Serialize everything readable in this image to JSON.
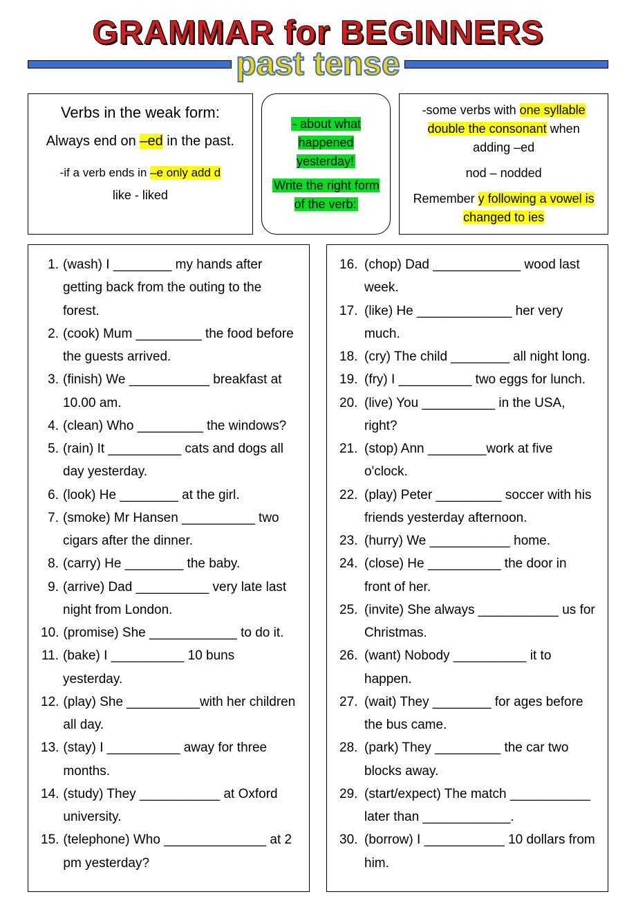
{
  "colors": {
    "title_red": "#d41e1e",
    "bar_blue": "#3b6fd1",
    "subtitle_yellow": "#f5d500",
    "highlight_yellow": "#ffff00",
    "highlight_green": "#00e020",
    "border": "#000000",
    "background": "#ffffff",
    "text": "#000000"
  },
  "title": "GRAMMAR for BEGINNERS",
  "subtitle": "past tense",
  "info_left": {
    "heading": "Verbs in the weak form:",
    "line1a": "Always end on ",
    "line1_hl": "–ed",
    "line1b": " in the past.",
    "note1a": "-if a verb ends in ",
    "note1_hl": "–e only add d",
    "example": "like - liked"
  },
  "info_mid": {
    "p1": "- about what happened yesterday!",
    "p2": "Write the right form of the verb:"
  },
  "info_right": {
    "l1a": "-some verbs with ",
    "l1_hl1": "one syllable",
    "l1b": " ",
    "l1_hl2": "double the consonant",
    "l1c": " when adding –ed",
    "ex": "nod – nodded",
    "l2a": "Remember ",
    "l2_hl": "y following a vowel is changed to ies"
  },
  "left_items": [
    {
      "n": "1.",
      "t": "(wash) I ________ my hands after getting back from the outing to the forest."
    },
    {
      "n": "2.",
      "t": "(cook) Mum _________ the food before the guests arrived."
    },
    {
      "n": "3.",
      "t": "(finish) We ___________ breakfast at 10.00 am."
    },
    {
      "n": "4.",
      "t": "(clean) Who _________ the windows?"
    },
    {
      "n": "5.",
      "t": "(rain) It __________ cats and dogs all day yesterday."
    },
    {
      "n": "6.",
      "t": "(look) He ________ at the girl."
    },
    {
      "n": "7.",
      "t": "(smoke) Mr Hansen __________ two cigars after the dinner."
    },
    {
      "n": "8.",
      "t": "(carry) He ________ the baby."
    },
    {
      "n": "9.",
      "t": "(arrive) Dad __________ very late last night from London."
    },
    {
      "n": "10.",
      "t": "(promise) She ____________ to do it."
    },
    {
      "n": "11.",
      "t": "(bake) I __________ 10 buns yesterday."
    },
    {
      "n": "12.",
      "t": "(play) She __________with her children all day."
    },
    {
      "n": "13.",
      "t": "(stay) I __________ away for three months."
    },
    {
      "n": "14.",
      "t": "(study) They ___________ at Oxford university."
    },
    {
      "n": "15.",
      "t": "(telephone) Who ______________ at 2 pm yesterday?"
    }
  ],
  "right_items": [
    {
      "n": "16.",
      "t": "(chop) Dad ____________ wood last week."
    },
    {
      "n": "17.",
      "t": "(like) He _____________ her very much."
    },
    {
      "n": "18.",
      "t": "(cry) The child ________ all night long."
    },
    {
      "n": "19.",
      "t": "(fry) I __________ two eggs for lunch."
    },
    {
      "n": "20.",
      "t": "(live) You __________ in the USA, right?"
    },
    {
      "n": "21.",
      "t": "(stop) Ann ________work at five o'clock."
    },
    {
      "n": "22.",
      "t": "(play) Peter _________ soccer with his friends yesterday afternoon."
    },
    {
      "n": "23.",
      "t": "(hurry) We ___________ home."
    },
    {
      "n": "24.",
      "t": "(close) He __________ the door in front of her."
    },
    {
      "n": "25.",
      "t": "(invite) She always ___________ us for Christmas."
    },
    {
      "n": "26.",
      "t": "(want) Nobody __________ it to happen."
    },
    {
      "n": "27.",
      "t": "(wait) They ________ for ages before the bus came."
    },
    {
      "n": "28.",
      "t": "(park) They _________ the car two blocks away."
    },
    {
      "n": "29.",
      "t": "(start/expect) The match ___________ later than ____________."
    },
    {
      "n": "30.",
      "t": "(borrow) I ___________ 10 dollars from him."
    }
  ]
}
